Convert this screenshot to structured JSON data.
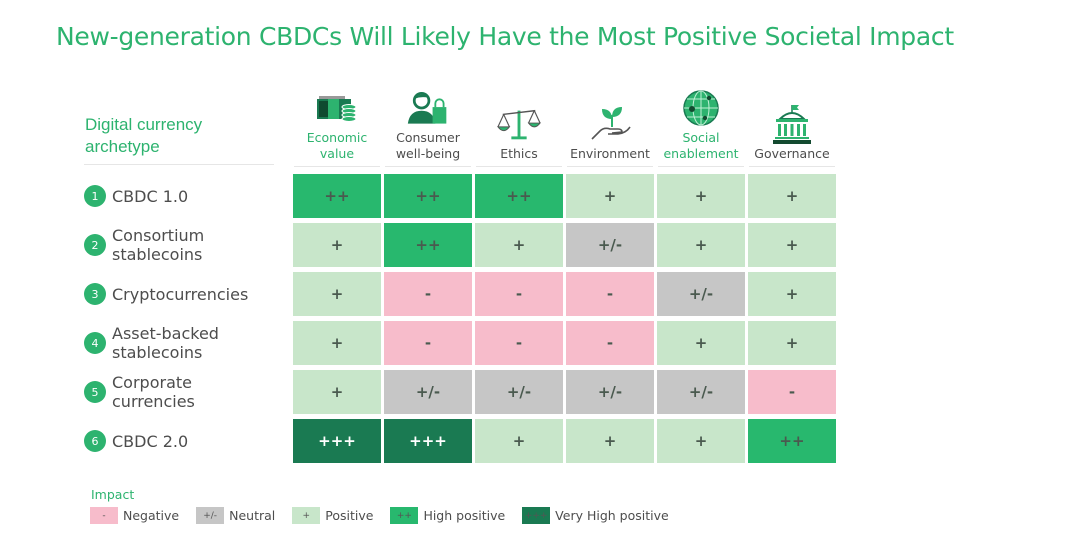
{
  "title": "New-generation CBDCs Will Likely Have the Most Positive Societal Impact",
  "archetype_header": [
    "Digital currency",
    "archetype"
  ],
  "colors": {
    "accent": "#2db36f",
    "negative": "#f7bccb",
    "neutral": "#c6c6c6",
    "positive": "#c8e6ca",
    "high_positive": "#28b86e",
    "very_high_positive": "#1a7a52"
  },
  "columns": [
    {
      "label": [
        "Economic",
        "value"
      ],
      "icon": "money-coins-icon",
      "highlight": true
    },
    {
      "label": [
        "Consumer",
        "well-being"
      ],
      "icon": "consumer-shopping-bag-icon",
      "highlight": false
    },
    {
      "label": [
        "Ethics"
      ],
      "icon": "scales-of-justice-icon",
      "highlight": false
    },
    {
      "label": [
        "Environment"
      ],
      "icon": "hand-plant-icon",
      "highlight": false
    },
    {
      "label": [
        "Social",
        "enablement"
      ],
      "icon": "network-globe-icon",
      "highlight": true
    },
    {
      "label": [
        "Governance"
      ],
      "icon": "government-building-icon",
      "highlight": false
    }
  ],
  "rows": [
    {
      "num": "1",
      "label": [
        "CBDC 1.0"
      ],
      "values": [
        "++",
        "++",
        "++",
        "+",
        "+",
        "+"
      ]
    },
    {
      "num": "2",
      "label": [
        "Consortium",
        "stablecoins"
      ],
      "values": [
        "+",
        "++",
        "+",
        "+/-",
        "+",
        "+"
      ]
    },
    {
      "num": "3",
      "label": [
        "Cryptocurrencies"
      ],
      "values": [
        "+",
        "-",
        "-",
        "-",
        "+/-",
        "+"
      ]
    },
    {
      "num": "4",
      "label": [
        "Asset-backed",
        "stablecoins"
      ],
      "values": [
        "+",
        "-",
        "-",
        "-",
        "+",
        "+"
      ]
    },
    {
      "num": "5",
      "label": [
        "Corporate",
        "currencies"
      ],
      "values": [
        "+",
        "+/-",
        "+/-",
        "+/-",
        "+/-",
        "-"
      ]
    },
    {
      "num": "6",
      "label": [
        "CBDC 2.0"
      ],
      "values": [
        "+++",
        "+++",
        "+",
        "+",
        "+",
        "++"
      ]
    }
  ],
  "legend": {
    "title": "Impact",
    "items": [
      {
        "symbol": "-",
        "label": "Negative"
      },
      {
        "symbol": "+/-",
        "label": "Neutral"
      },
      {
        "symbol": "+",
        "label": "Positive"
      },
      {
        "symbol": "++",
        "label": "High positive"
      },
      {
        "symbol": "+++",
        "label": "Very High positive"
      }
    ]
  }
}
